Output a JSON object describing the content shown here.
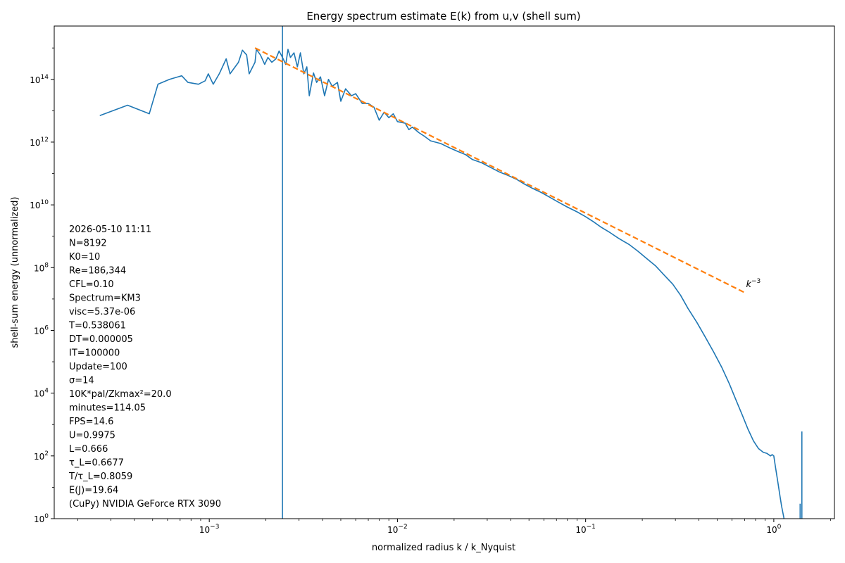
{
  "chart_data": {
    "type": "line",
    "title": "Energy spectrum estimate E(k) from u,v (shell sum)",
    "xlabel": "normalized radius  k / k_Nyquist",
    "ylabel": "shell-sum energy (unnormalized)",
    "x_scale": "log",
    "y_scale": "log",
    "xlim": [
      0.00015,
      2.1
    ],
    "ylim": [
      1,
      5000000000000000.0
    ],
    "x_ticks": [
      {
        "value": 0.001,
        "base": "10",
        "exp": "−3"
      },
      {
        "value": 0.01,
        "base": "10",
        "exp": "−2"
      },
      {
        "value": 0.1,
        "base": "10",
        "exp": "−1"
      },
      {
        "value": 1,
        "base": "10",
        "exp": "0"
      }
    ],
    "y_ticks": [
      {
        "value": 1,
        "base": "10",
        "exp": "0"
      },
      {
        "value": 100,
        "base": "10",
        "exp": "2"
      },
      {
        "value": 10000,
        "base": "10",
        "exp": "4"
      },
      {
        "value": 1000000,
        "base": "10",
        "exp": "6"
      },
      {
        "value": 100000000,
        "base": "10",
        "exp": "8"
      },
      {
        "value": 10000000000,
        "base": "10",
        "exp": "10"
      },
      {
        "value": 1000000000000,
        "base": "10",
        "exp": "12"
      },
      {
        "value": 100000000000000,
        "base": "10",
        "exp": "14"
      }
    ],
    "vline_x": 0.00245,
    "colors": {
      "spectrum": "#1f77b4",
      "fit": "#ff7f0e",
      "vline": "#1f77b4"
    },
    "series": [
      {
        "style": "solid",
        "color": "#1f77b4",
        "points": [
          [
            0.000262,
            7000000000000.0
          ],
          [
            0.000368,
            15000000000000.0
          ],
          [
            0.00048,
            8000000000000.0
          ],
          [
            0.000534,
            70000000000000.0
          ],
          [
            0.000615,
            100000000000000.0
          ],
          [
            0.000714,
            130000000000000.0
          ],
          [
            0.00077,
            80000000000000.0
          ],
          [
            0.000876,
            70000000000000.0
          ],
          [
            0.000951,
            90000000000000.0
          ],
          [
            0.000988,
            150000000000000.0
          ],
          [
            0.00105,
            70000000000000.0
          ],
          [
            0.00113,
            150000000000000.0
          ],
          [
            0.00123,
            450000000000000.0
          ],
          [
            0.00129,
            150000000000000.0
          ],
          [
            0.00143,
            350000000000000.0
          ],
          [
            0.0015,
            850000000000000.0
          ],
          [
            0.00158,
            600000000000000.0
          ],
          [
            0.00163,
            150000000000000.0
          ],
          [
            0.00175,
            350000000000000.0
          ],
          [
            0.00178,
            900000000000000.0
          ],
          [
            0.00187,
            600000000000000.0
          ],
          [
            0.00197,
            300000000000000.0
          ],
          [
            0.00205,
            500000000000000.0
          ],
          [
            0.00215,
            350000000000000.0
          ],
          [
            0.00226,
            450000000000000.0
          ],
          [
            0.00235,
            800000000000000.0
          ],
          [
            0.00245,
            500000000000000.0
          ],
          [
            0.00255,
            300000000000000.0
          ],
          [
            0.00262,
            900000000000000.0
          ],
          [
            0.0027,
            500000000000000.0
          ],
          [
            0.00282,
            700000000000000.0
          ],
          [
            0.00294,
            250000000000000.0
          ],
          [
            0.00305,
            700000000000000.0
          ],
          [
            0.00318,
            150000000000000.0
          ],
          [
            0.0033,
            250000000000000.0
          ],
          [
            0.0034,
            30000000000000.0
          ],
          [
            0.00358,
            160000000000000.0
          ],
          [
            0.00372,
            80000000000000.0
          ],
          [
            0.0039,
            120000000000000.0
          ],
          [
            0.0041,
            30000000000000.0
          ],
          [
            0.0043,
            100000000000000.0
          ],
          [
            0.0045,
            60000000000000.0
          ],
          [
            0.0048,
            80000000000000.0
          ],
          [
            0.005,
            20000000000000.0
          ],
          [
            0.0053,
            50000000000000.0
          ],
          [
            0.0057,
            30000000000000.0
          ],
          [
            0.006,
            35000000000000.0
          ],
          [
            0.0065,
            17000000000000.0
          ],
          [
            0.007,
            17000000000000.0
          ],
          [
            0.0075,
            13000000000000.0
          ],
          [
            0.008,
            5000000000000.0
          ],
          [
            0.0085,
            9000000000000.0
          ],
          [
            0.009,
            6000000000000.0
          ],
          [
            0.0095,
            8000000000000.0
          ],
          [
            0.01,
            4500000000000.0
          ],
          [
            0.011,
            4000000000000.0
          ],
          [
            0.0115,
            2500000000000.0
          ],
          [
            0.012,
            3000000000000.0
          ],
          [
            0.013,
            2000000000000.0
          ],
          [
            0.014,
            1500000000000.0
          ],
          [
            0.015,
            1100000000000.0
          ],
          [
            0.017,
            900000000000.0
          ],
          [
            0.019,
            650000000000.0
          ],
          [
            0.021,
            500000000000.0
          ],
          [
            0.023,
            400000000000.0
          ],
          [
            0.025,
            280000000000.0
          ],
          [
            0.028,
            220000000000.0
          ],
          [
            0.031,
            160000000000.0
          ],
          [
            0.035,
            110000000000.0
          ],
          [
            0.039,
            85000000000.0
          ],
          [
            0.043,
            65000000000.0
          ],
          [
            0.047,
            47000000000.0
          ],
          [
            0.052,
            34000000000.0
          ],
          [
            0.058,
            25000000000.0
          ],
          [
            0.065,
            17000000000.0
          ],
          [
            0.072,
            12000000000.0
          ],
          [
            0.08,
            8500000000.0
          ],
          [
            0.09,
            6000000000.0
          ],
          [
            0.1,
            4200000000.0
          ],
          [
            0.11,
            2900000000.0
          ],
          [
            0.12,
            2000000000.0
          ],
          [
            0.135,
            1300000000.0
          ],
          [
            0.15,
            850000000.0
          ],
          [
            0.17,
            550000000.0
          ],
          [
            0.19,
            330000000.0
          ],
          [
            0.21,
            200000000.0
          ],
          [
            0.235,
            115000000.0
          ],
          [
            0.26,
            60000000.0
          ],
          [
            0.29,
            30000000.0
          ],
          [
            0.32,
            13000000.0
          ],
          [
            0.35,
            5000000.0
          ],
          [
            0.39,
            1800000.0
          ],
          [
            0.43,
            650000.0
          ],
          [
            0.48,
            200000.0
          ],
          [
            0.53,
            65000.0
          ],
          [
            0.58,
            20000.0
          ],
          [
            0.63,
            6000.0
          ],
          [
            0.68,
            2000.0
          ],
          [
            0.73,
            700
          ],
          [
            0.78,
            300
          ],
          [
            0.83,
            170
          ],
          [
            0.88,
            130
          ],
          [
            0.92,
            120
          ],
          [
            0.96,
            100
          ],
          [
            0.98,
            110
          ],
          [
            1.0,
            100
          ],
          [
            1.02,
            45
          ],
          [
            1.05,
            15
          ],
          [
            1.08,
            5
          ],
          [
            1.1,
            2.5
          ],
          [
            1.13,
            1.1
          ],
          [
            1.15,
            0.5
          ]
        ]
      },
      {
        "style": "dashed",
        "color": "#ff7f0e",
        "points": [
          [
            0.00175,
            1000000000000000.0
          ],
          [
            0.7,
            16000000.0
          ]
        ]
      }
    ],
    "spikes": [
      {
        "x": 1.38,
        "y": 3
      },
      {
        "x": 1.41,
        "y": 600
      }
    ],
    "annotation": {
      "base": "k",
      "exp": "−3",
      "x": 0.7,
      "y": 16000000.0
    },
    "notes": [
      "2026-05-10 11:11",
      "N=8192",
      "K0=10",
      "Re=186,344",
      "CFL=0.10",
      "Spectrum=KM3",
      "visc=5.37e-06",
      "T=0.538061",
      "DT=0.000005",
      "IT=100000",
      "Update=100",
      "σ=14",
      "10K*pal/Zkmax²=20.0",
      "minutes=114.05",
      "FPS=14.6",
      "U=0.9975",
      "L=0.666",
      "τ_L=0.6677",
      "T/τ_L=0.8059",
      "E(J)=19.64",
      "(CuPy) NVIDIA GeForce RTX 3090"
    ]
  }
}
